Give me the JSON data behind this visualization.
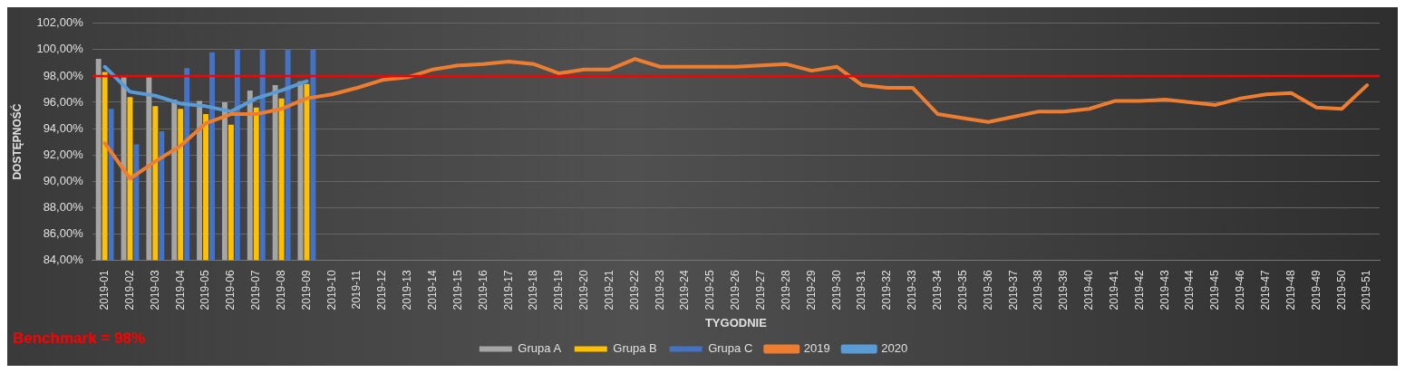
{
  "chart_data": {
    "type": "bar",
    "xlabel": "TYGODNIE",
    "ylabel": "DOSTĘPNOŚĆ",
    "categories": [
      "2019-01",
      "2019-02",
      "2019-03",
      "2019-04",
      "2019-05",
      "2019-06",
      "2019-07",
      "2019-08",
      "2019-09",
      "2019-10",
      "2019-11",
      "2019-12",
      "2019-13",
      "2019-14",
      "2019-15",
      "2019-16",
      "2019-17",
      "2019-18",
      "2019-19",
      "2019-20",
      "2019-21",
      "2019-22",
      "2019-23",
      "2019-24",
      "2019-25",
      "2019-26",
      "2019-27",
      "2019-28",
      "2019-29",
      "2019-30",
      "2019-31",
      "2019-32",
      "2019-33",
      "2019-34",
      "2019-35",
      "2019-36",
      "2019-37",
      "2019-38",
      "2019-39",
      "2019-40",
      "2019-41",
      "2019-42",
      "2019-43",
      "2019-44",
      "2019-45",
      "2019-46",
      "2019-47",
      "2019-48",
      "2019-49",
      "2019-50",
      "2019-51"
    ],
    "series": [
      {
        "name": "Grupa A",
        "color": "#a5a5a5",
        "values": [
          99.3,
          97.9,
          97.9,
          96.2,
          96.1,
          96.0,
          96.9,
          97.3,
          97.6,
          null,
          null,
          null,
          null,
          null,
          null,
          null,
          null,
          null,
          null,
          null,
          null,
          null,
          null,
          null,
          null,
          null,
          null,
          null,
          null,
          null,
          null,
          null,
          null,
          null,
          null,
          null,
          null,
          null,
          null,
          null,
          null,
          null,
          null,
          null,
          null,
          null,
          null,
          null,
          null,
          null,
          null
        ]
      },
      {
        "name": "Grupa B",
        "color": "#ffc000",
        "values": [
          98.3,
          96.4,
          95.7,
          95.5,
          95.1,
          94.3,
          95.6,
          96.3,
          97.4,
          null,
          null,
          null,
          null,
          null,
          null,
          null,
          null,
          null,
          null,
          null,
          null,
          null,
          null,
          null,
          null,
          null,
          null,
          null,
          null,
          null,
          null,
          null,
          null,
          null,
          null,
          null,
          null,
          null,
          null,
          null,
          null,
          null,
          null,
          null,
          null,
          null,
          null,
          null,
          null,
          null,
          null
        ]
      },
      {
        "name": "Grupa C",
        "color": "#4472c4",
        "values": [
          95.5,
          92.8,
          93.8,
          98.6,
          99.8,
          100,
          100,
          100,
          100,
          null,
          null,
          null,
          null,
          null,
          null,
          null,
          null,
          null,
          null,
          null,
          null,
          null,
          null,
          null,
          null,
          null,
          null,
          null,
          null,
          null,
          null,
          null,
          null,
          null,
          null,
          null,
          null,
          null,
          null,
          null,
          null,
          null,
          null,
          null,
          null,
          null,
          null,
          null,
          null,
          null,
          null
        ]
      },
      {
        "name": "2019",
        "type": "line",
        "color": "#ed7d31",
        "values": [
          92.9,
          90.2,
          91.5,
          92.7,
          94.4,
          95.1,
          95.1,
          95.5,
          96.3,
          96.6,
          97.1,
          97.7,
          97.9,
          98.5,
          98.8,
          98.9,
          99.1,
          98.9,
          98.2,
          98.5,
          98.5,
          99.3,
          98.7,
          98.7,
          98.7,
          98.7,
          98.8,
          98.9,
          98.4,
          98.7,
          97.3,
          97.1,
          97.1,
          95.1,
          94.8,
          94.5,
          94.9,
          95.3,
          95.3,
          95.5,
          96.1,
          96.1,
          96.2,
          96.0,
          95.8,
          96.3,
          96.6,
          96.7,
          95.6,
          95.5,
          97.3
        ]
      },
      {
        "name": "2020",
        "type": "line",
        "color": "#5b9bd5",
        "values": [
          98.7,
          96.8,
          96.5,
          95.9,
          95.7,
          95.3,
          96.3,
          96.9,
          97.6,
          null,
          null,
          null,
          null,
          null,
          null,
          null,
          null,
          null,
          null,
          null,
          null,
          null,
          null,
          null,
          null,
          null,
          null,
          null,
          null,
          null,
          null,
          null,
          null,
          null,
          null,
          null,
          null,
          null,
          null,
          null,
          null,
          null,
          null,
          null,
          null,
          null,
          null,
          null,
          null,
          null,
          null
        ]
      }
    ],
    "ylim": [
      84,
      102
    ],
    "yticks": [
      {
        "value": 84,
        "label": "84,00%"
      },
      {
        "value": 86,
        "label": "86,00%"
      },
      {
        "value": 88,
        "label": "88,00%"
      },
      {
        "value": 90,
        "label": "90,00%"
      },
      {
        "value": 92,
        "label": "92,00%"
      },
      {
        "value": 94,
        "label": "94,00%"
      },
      {
        "value": 96,
        "label": "96,00%"
      },
      {
        "value": 98,
        "label": "98,00%"
      },
      {
        "value": 100,
        "label": "100,00%"
      },
      {
        "value": 102,
        "label": "102,00%"
      }
    ],
    "ref_lines": [
      {
        "axis": "y",
        "value": 98,
        "color": "#ff0000"
      }
    ],
    "annotations": [
      "Benchmark = 98%"
    ],
    "grid": "y",
    "legend": "bottom",
    "marker": "none",
    "line_style": "solid"
  }
}
